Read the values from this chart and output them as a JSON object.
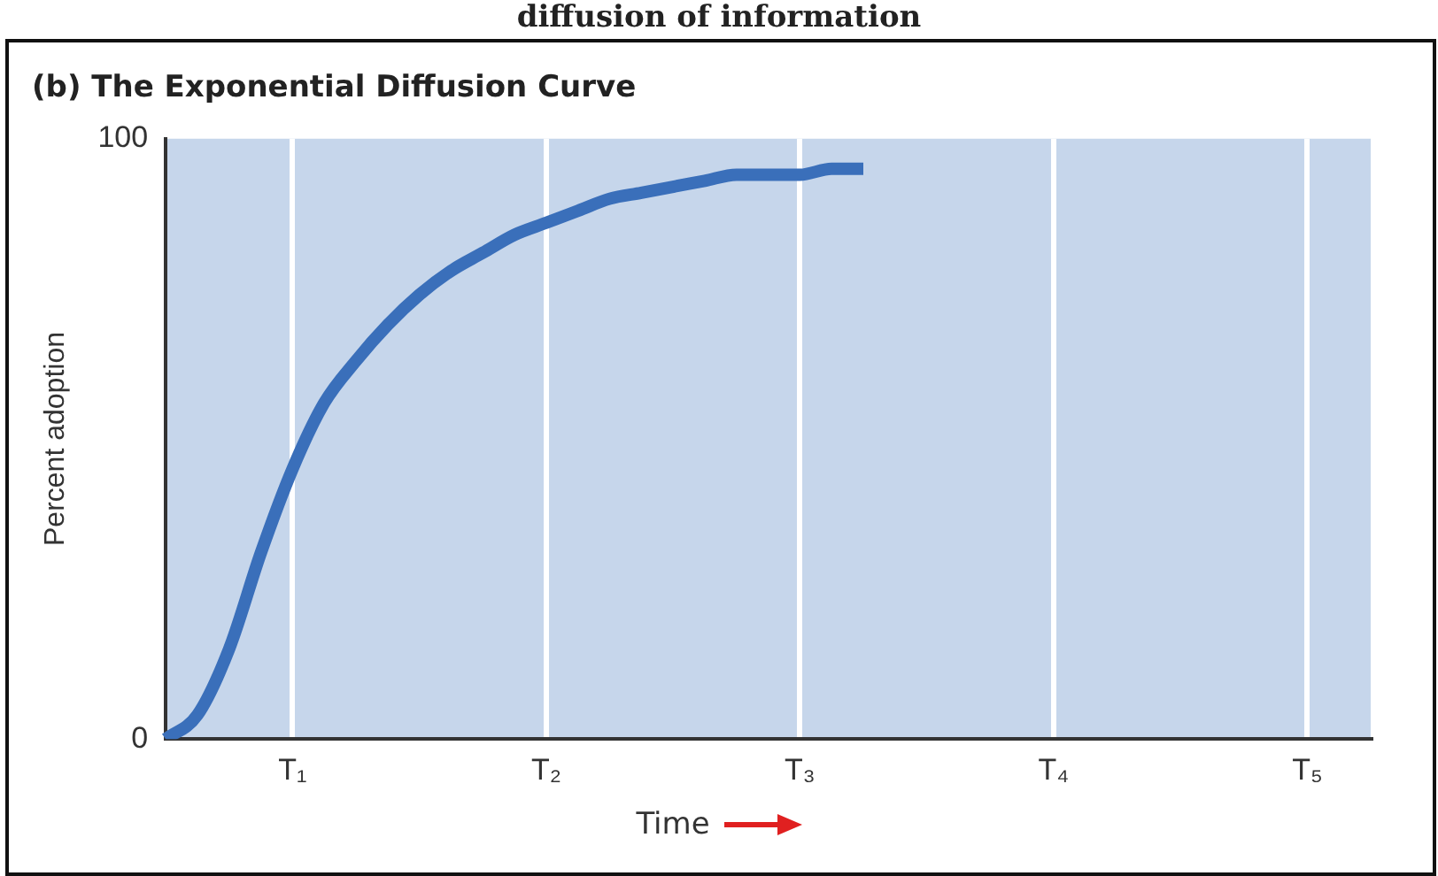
{
  "chart_data": {
    "type": "line",
    "title": "(b) The Exponential Diffusion Curve",
    "xlabel": "Time",
    "ylabel": "Percent adoption",
    "annotations": [
      "diffusion of information"
    ],
    "categories": [
      null,
      null,
      null,
      null,
      "T₁",
      null,
      null,
      null,
      null,
      null,
      null,
      null,
      "T₂",
      null,
      null,
      null,
      null,
      null,
      null,
      null,
      "T₃",
      null,
      null,
      null,
      null,
      null,
      null,
      null,
      "T₄",
      null,
      null,
      null,
      null,
      null,
      null,
      null,
      "T₅",
      null,
      null
    ],
    "series": [
      {
        "color": "#3a6fba",
        "values": [
          0,
          4,
          15,
          31,
          45,
          56,
          63,
          69,
          74,
          78,
          81,
          84,
          86,
          88,
          90,
          91,
          92,
          93,
          94,
          94,
          94,
          95,
          95,
          null,
          null,
          null,
          null,
          null,
          null,
          null,
          null,
          null,
          null,
          null,
          null,
          null,
          null,
          null,
          null
        ]
      }
    ],
    "ylim": [
      0,
      100
    ],
    "yticks": [
      0,
      100
    ],
    "grid": "x",
    "legend": false,
    "marker": "none",
    "line_style": "solid"
  }
}
